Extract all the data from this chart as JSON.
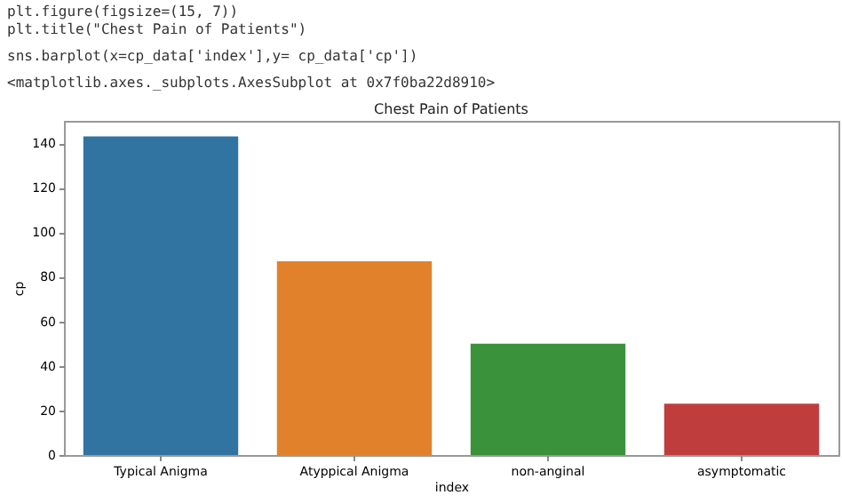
{
  "chart_data": {
    "type": "bar",
    "title": "Chest Pain of Patients",
    "xlabel": "index",
    "ylabel": "cp",
    "annotations": [
      "plt.figure(figsize=(15, 7))",
      "plt.title(\"Chest Pain of Patients\")",
      "sns.barplot(x=cp_data['index'],y= cp_data['cp'])",
      "<matplotlib.axes._subplots.AxesSubplot at 0x7f0ba22d8910>"
    ],
    "categories": [
      "Typical Anigma",
      "Atyppical Anigma",
      "non-anginal",
      "asymptomatic"
    ],
    "values": [
      143,
      87,
      50,
      23
    ],
    "colors": [
      "#3274a1",
      "#e1812c",
      "#3a923a",
      "#c03d3e"
    ],
    "ylim": [
      0,
      150
    ],
    "yticks": [
      0,
      20,
      40,
      60,
      80,
      100,
      120,
      140
    ],
    "grid": false,
    "legend": false
  }
}
